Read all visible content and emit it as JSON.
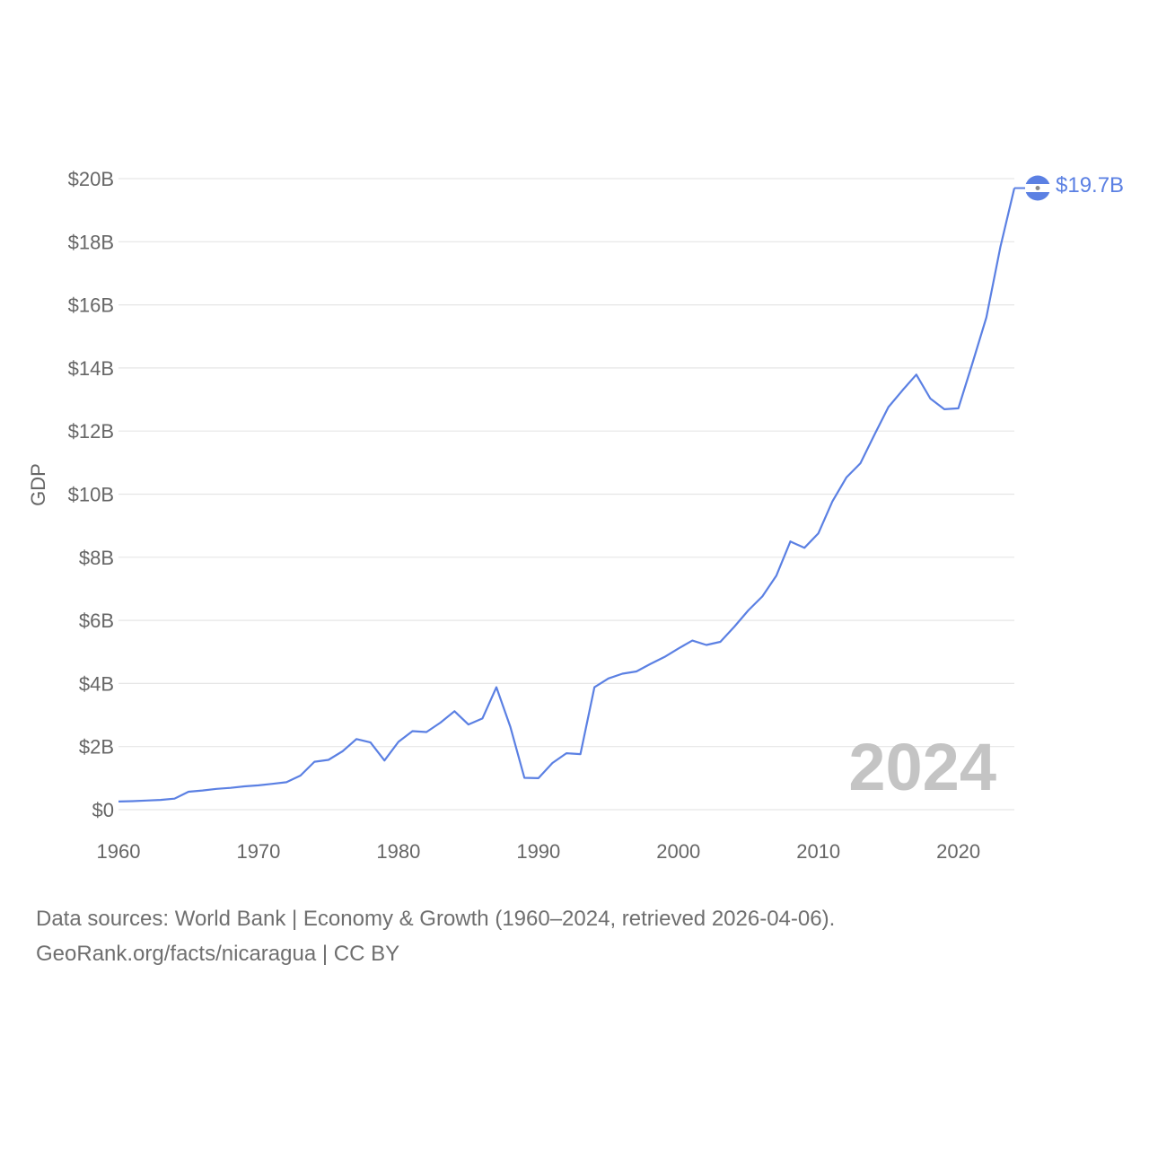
{
  "chart_data": {
    "type": "line",
    "ylabel": "GDP",
    "xlabel": "",
    "xlim": [
      1960,
      2024
    ],
    "ylim": [
      0,
      20000000000
    ],
    "grid": true,
    "x_ticks": [
      1960,
      1970,
      1980,
      1990,
      2000,
      2010,
      2020
    ],
    "x_tick_labels": [
      "1960",
      "1970",
      "1980",
      "1990",
      "2000",
      "2010",
      "2020"
    ],
    "y_ticks": [
      0,
      2000000000,
      4000000000,
      6000000000,
      8000000000,
      10000000000,
      12000000000,
      14000000000,
      16000000000,
      18000000000,
      20000000000
    ],
    "y_tick_labels": [
      "$0",
      "$2B",
      "$4B",
      "$6B",
      "$8B",
      "$10B",
      "$12B",
      "$14B",
      "$16B",
      "$18B",
      "$20B"
    ],
    "current_year_label": "2024",
    "end_value_label": "$19.7B",
    "series": [
      {
        "name": "Nicaragua",
        "color": "#5b80e3",
        "x": [
          1960,
          1961,
          1962,
          1963,
          1964,
          1965,
          1966,
          1967,
          1968,
          1969,
          1970,
          1971,
          1972,
          1973,
          1974,
          1975,
          1976,
          1977,
          1978,
          1979,
          1980,
          1981,
          1982,
          1983,
          1984,
          1985,
          1986,
          1987,
          1988,
          1989,
          1990,
          1991,
          1992,
          1993,
          1994,
          1995,
          1996,
          1997,
          1998,
          1999,
          2000,
          2001,
          2002,
          2003,
          2004,
          2005,
          2006,
          2007,
          2008,
          2009,
          2010,
          2011,
          2012,
          2013,
          2014,
          2015,
          2016,
          2017,
          2018,
          2019,
          2020,
          2021,
          2022,
          2023,
          2024
        ],
        "values": [
          260000000,
          270000000,
          290000000,
          310000000,
          350000000,
          570000000,
          610000000,
          660000000,
          690000000,
          740000000,
          770000000,
          820000000,
          870000000,
          1080000000,
          1520000000,
          1580000000,
          1850000000,
          2240000000,
          2130000000,
          1560000000,
          2150000000,
          2490000000,
          2460000000,
          2760000000,
          3120000000,
          2700000000,
          2890000000,
          3880000000,
          2620000000,
          1010000000,
          1000000000,
          1480000000,
          1790000000,
          1760000000,
          3880000000,
          4160000000,
          4310000000,
          4380000000,
          4620000000,
          4840000000,
          5110000000,
          5360000000,
          5220000000,
          5320000000,
          5800000000,
          6320000000,
          6760000000,
          7420000000,
          8500000000,
          8300000000,
          8760000000,
          9770000000,
          10530000000,
          10980000000,
          11880000000,
          12760000000,
          13290000000,
          13790000000,
          13030000000,
          12690000000,
          12720000000,
          14140000000,
          15600000000,
          17830000000,
          19700000000
        ]
      }
    ]
  },
  "colors": {
    "line": "#5b80e3",
    "grid": "#e6e6e6",
    "text": "#666666",
    "watermark": "#c4c4c4"
  },
  "flag": {
    "name": "Nicaragua flag",
    "stripe_color": "#5b80e3",
    "band_color": "#ffffff"
  },
  "source": {
    "line1": "Data sources: World Bank | Economy & Growth (1960–2024, retrieved 2026-04-06).",
    "line2": "GeoRank.org/facts/nicaragua | CC BY"
  }
}
